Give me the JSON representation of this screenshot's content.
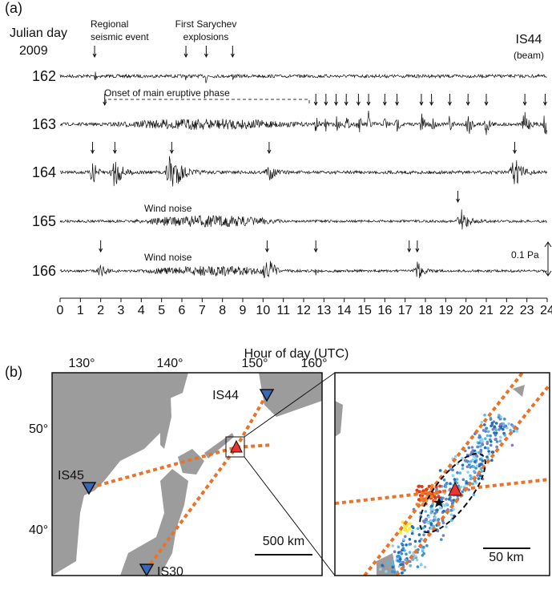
{
  "panel_a": {
    "label": "(a)",
    "julian_day": "Julian day",
    "year": "2009",
    "station": "IS44",
    "station_note": "(beam)",
    "days": [
      "162",
      "163",
      "164",
      "165",
      "166"
    ],
    "annotations": {
      "regional": [
        "Regional",
        "seismic event"
      ],
      "sarychev": [
        "First Sarychev",
        "explosions"
      ],
      "onset": "Onset of main eruptive phase",
      "wind_noise_165": "Wind noise",
      "wind_noise_166": "Wind noise",
      "scale": "0.1 Pa"
    },
    "x_axis": {
      "ticks": [
        0,
        1,
        2,
        3,
        4,
        5,
        6,
        7,
        8,
        9,
        10,
        11,
        12,
        13,
        14,
        15,
        16,
        17,
        18,
        19,
        20,
        21,
        22,
        23,
        24
      ],
      "label": "Hour of day (UTC)"
    }
  },
  "panel_b": {
    "label": "(b)",
    "lon_ticks": [
      "130°",
      "140°",
      "150°",
      "160°"
    ],
    "lat_ticks": [
      "50°",
      "40°"
    ],
    "stations": [
      "IS44",
      "IS45",
      "IS30"
    ],
    "scale_main": "500 km",
    "scale_inset": "50 km"
  }
}
